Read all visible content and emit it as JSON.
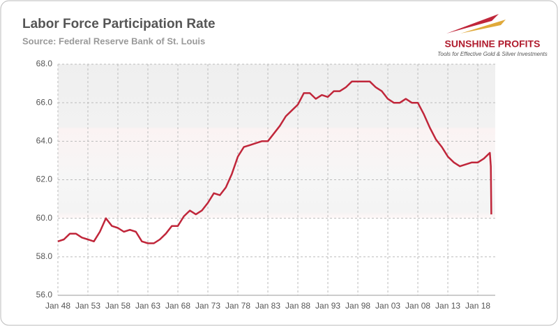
{
  "chart_data": {
    "type": "line",
    "title": "Labor Force Participation Rate",
    "subtitle": "Source: Federal Reserve Bank of St. Louis",
    "logo": {
      "name": "SUNSHINE PROFITS",
      "tagline": "Tools for Effective Gold & Silver Investments"
    },
    "x": [
      1948,
      1949,
      1950,
      1951,
      1952,
      1953,
      1954,
      1955,
      1956,
      1957,
      1958,
      1959,
      1960,
      1961,
      1962,
      1963,
      1964,
      1965,
      1966,
      1967,
      1968,
      1969,
      1970,
      1971,
      1972,
      1973,
      1974,
      1975,
      1976,
      1977,
      1978,
      1979,
      1980,
      1981,
      1982,
      1983,
      1984,
      1985,
      1986,
      1987,
      1988,
      1989,
      1990,
      1991,
      1992,
      1993,
      1994,
      1995,
      1996,
      1997,
      1998,
      1999,
      2000,
      2001,
      2002,
      2003,
      2004,
      2005,
      2006,
      2007,
      2008,
      2009,
      2010,
      2011,
      2012,
      2013,
      2014,
      2015,
      2016,
      2017,
      2018,
      2019,
      2020,
      2020.17,
      2020.25
    ],
    "series": [
      {
        "name": "Labor Force Participation Rate",
        "color": "#c0263a",
        "values": [
          58.8,
          58.9,
          59.2,
          59.2,
          59.0,
          58.9,
          58.8,
          59.3,
          60.0,
          59.6,
          59.5,
          59.3,
          59.4,
          59.3,
          58.8,
          58.7,
          58.7,
          58.9,
          59.2,
          59.6,
          59.6,
          60.1,
          60.4,
          60.2,
          60.4,
          60.8,
          61.3,
          61.2,
          61.6,
          62.3,
          63.2,
          63.7,
          63.8,
          63.9,
          64.0,
          64.0,
          64.4,
          64.8,
          65.3,
          65.6,
          65.9,
          66.5,
          66.5,
          66.2,
          66.4,
          66.3,
          66.6,
          66.6,
          66.8,
          67.1,
          67.1,
          67.1,
          67.1,
          66.8,
          66.6,
          66.2,
          66.0,
          66.0,
          66.2,
          66.0,
          66.0,
          65.4,
          64.7,
          64.1,
          63.7,
          63.2,
          62.9,
          62.7,
          62.8,
          62.9,
          62.9,
          63.1,
          63.4,
          62.7,
          60.2
        ]
      }
    ],
    "xlim": [
      1948,
      2020.9
    ],
    "xticks": [
      {
        "value": 1948,
        "label": "Jan 48"
      },
      {
        "value": 1953,
        "label": "Jan 53"
      },
      {
        "value": 1958,
        "label": "Jan 58"
      },
      {
        "value": 1963,
        "label": "Jan 63"
      },
      {
        "value": 1968,
        "label": "Jan 68"
      },
      {
        "value": 1973,
        "label": "Jan 73"
      },
      {
        "value": 1978,
        "label": "Jan 78"
      },
      {
        "value": 1983,
        "label": "Jan 83"
      },
      {
        "value": 1988,
        "label": "Jan 88"
      },
      {
        "value": 1993,
        "label": "Jan 93"
      },
      {
        "value": 1998,
        "label": "Jan 98"
      },
      {
        "value": 2003,
        "label": "Jan 03"
      },
      {
        "value": 2008,
        "label": "Jan 08"
      },
      {
        "value": 2013,
        "label": "Jan 13"
      },
      {
        "value": 2018,
        "label": "Jan 18"
      }
    ],
    "ylim": [
      56,
      68
    ],
    "yticks": [
      {
        "value": 56,
        "label": "56.0"
      },
      {
        "value": 58,
        "label": "58.0"
      },
      {
        "value": 60,
        "label": "60.0"
      },
      {
        "value": 62,
        "label": "62.0"
      },
      {
        "value": 64,
        "label": "64.0"
      },
      {
        "value": 66,
        "label": "66.0"
      },
      {
        "value": 68,
        "label": "68.0"
      }
    ],
    "grid": true
  }
}
